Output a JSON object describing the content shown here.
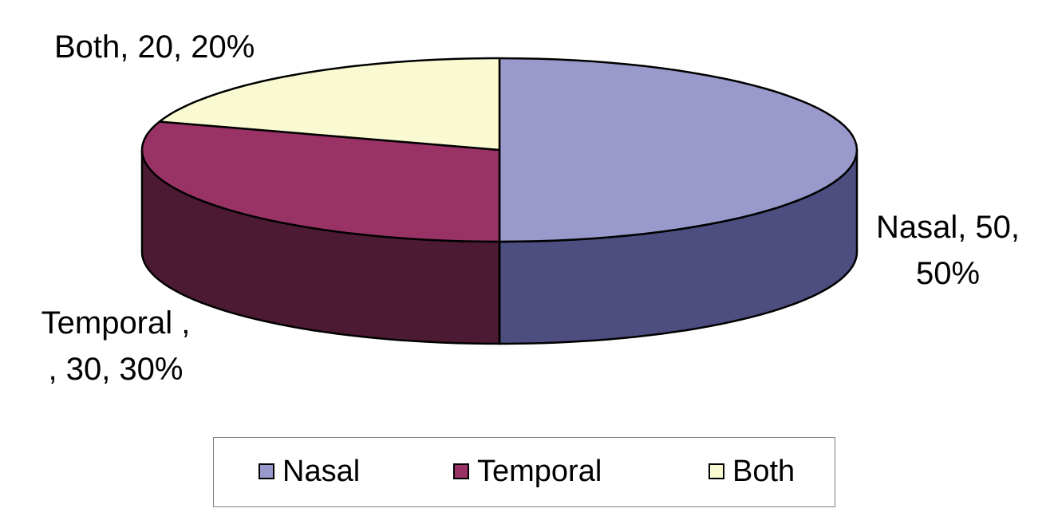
{
  "chart_data": {
    "type": "pie",
    "title": "",
    "categories": [
      "Nasal",
      "Temporal",
      "Both"
    ],
    "values": [
      50,
      30,
      20
    ],
    "percents": [
      50,
      30,
      20
    ],
    "colors": [
      "#9999cc",
      "#993366",
      "#fafad2"
    ],
    "side_colors": [
      "#4d4d80",
      "#4d1a33",
      "#c8c8a8"
    ],
    "data_labels": [
      [
        "Nasal, 50,",
        "50%"
      ],
      [
        "Temporal ,",
        ", 30, 30%"
      ],
      [
        "Both, 20, 20%"
      ]
    ],
    "legend": {
      "placement": "bottom",
      "entries": [
        "Nasal",
        "Temporal",
        "Both"
      ]
    },
    "style": "3d-perspective"
  }
}
